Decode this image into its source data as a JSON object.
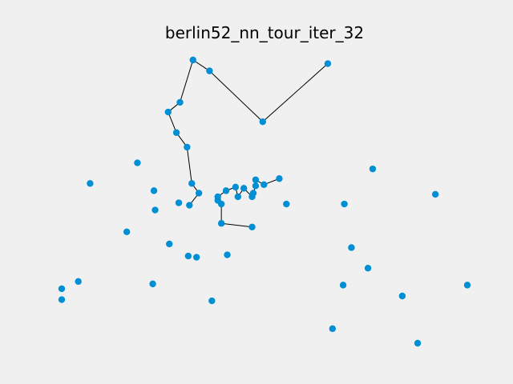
{
  "chart_data": {
    "type": "scatter",
    "title": "berlin52_nn_tour_iter_32",
    "grid": false,
    "axes_visible": false,
    "xlim": [
      0,
      1760
    ],
    "ylim": [
      0,
      1200
    ],
    "point_color": "#008fd5",
    "edge_color": "#000000",
    "background": "#f0f0f0",
    "cities": [
      {
        "x": 565,
        "y": 575
      },
      {
        "x": 25,
        "y": 185
      },
      {
        "x": 345,
        "y": 750
      },
      {
        "x": 945,
        "y": 685
      },
      {
        "x": 845,
        "y": 655
      },
      {
        "x": 880,
        "y": 660
      },
      {
        "x": 25,
        "y": 230
      },
      {
        "x": 525,
        "y": 1000
      },
      {
        "x": 580,
        "y": 1175
      },
      {
        "x": 650,
        "y": 1130
      },
      {
        "x": 1605,
        "y": 620
      },
      {
        "x": 1220,
        "y": 580
      },
      {
        "x": 1465,
        "y": 200
      },
      {
        "x": 1530,
        "y": 5
      },
      {
        "x": 845,
        "y": 680
      },
      {
        "x": 725,
        "y": 370
      },
      {
        "x": 145,
        "y": 665
      },
      {
        "x": 415,
        "y": 635
      },
      {
        "x": 510,
        "y": 875
      },
      {
        "x": 560,
        "y": 365
      },
      {
        "x": 300,
        "y": 465
      },
      {
        "x": 520,
        "y": 585
      },
      {
        "x": 480,
        "y": 415
      },
      {
        "x": 835,
        "y": 625
      },
      {
        "x": 975,
        "y": 580
      },
      {
        "x": 1215,
        "y": 245
      },
      {
        "x": 1320,
        "y": 315
      },
      {
        "x": 1250,
        "y": 400
      },
      {
        "x": 660,
        "y": 180
      },
      {
        "x": 410,
        "y": 250
      },
      {
        "x": 420,
        "y": 555
      },
      {
        "x": 575,
        "y": 665
      },
      {
        "x": 1150,
        "y": 1160
      },
      {
        "x": 700,
        "y": 580
      },
      {
        "x": 685,
        "y": 595
      },
      {
        "x": 685,
        "y": 610
      },
      {
        "x": 770,
        "y": 610
      },
      {
        "x": 795,
        "y": 645
      },
      {
        "x": 720,
        "y": 635
      },
      {
        "x": 760,
        "y": 650
      },
      {
        "x": 475,
        "y": 960
      },
      {
        "x": 95,
        "y": 260
      },
      {
        "x": 875,
        "y": 920
      },
      {
        "x": 700,
        "y": 500
      },
      {
        "x": 555,
        "y": 815
      },
      {
        "x": 830,
        "y": 485
      },
      {
        "x": 1170,
        "y": 65
      },
      {
        "x": 830,
        "y": 610
      },
      {
        "x": 605,
        "y": 625
      },
      {
        "x": 595,
        "y": 360
      },
      {
        "x": 1340,
        "y": 725
      },
      {
        "x": 1740,
        "y": 245
      }
    ],
    "tour": [
      0,
      48,
      31,
      44,
      18,
      40,
      7,
      8,
      9,
      42,
      32,
      50,
      10,
      51,
      13,
      12,
      46,
      25,
      26,
      27,
      11,
      24,
      3,
      5,
      14,
      4,
      23,
      47,
      37,
      36,
      39,
      38,
      35,
      34,
      33,
      43,
      45,
      15,
      28,
      49,
      19,
      22,
      29,
      1,
      6,
      41,
      20,
      16,
      2,
      17,
      30,
      21
    ],
    "drawn_edges": [
      [
        7,
        8
      ],
      [
        8,
        9
      ],
      [
        9,
        42
      ],
      [
        42,
        32
      ],
      [
        0,
        48
      ],
      [
        48,
        31
      ],
      [
        31,
        44
      ],
      [
        44,
        18
      ],
      [
        18,
        40
      ],
      [
        40,
        7
      ],
      [
        3,
        5
      ],
      [
        5,
        14
      ],
      [
        14,
        4
      ],
      [
        4,
        23
      ],
      [
        23,
        47
      ],
      [
        47,
        37
      ],
      [
        37,
        36
      ],
      [
        36,
        39
      ],
      [
        39,
        38
      ],
      [
        38,
        35
      ],
      [
        35,
        34
      ],
      [
        34,
        33
      ],
      [
        33,
        43
      ],
      [
        43,
        45
      ]
    ]
  }
}
